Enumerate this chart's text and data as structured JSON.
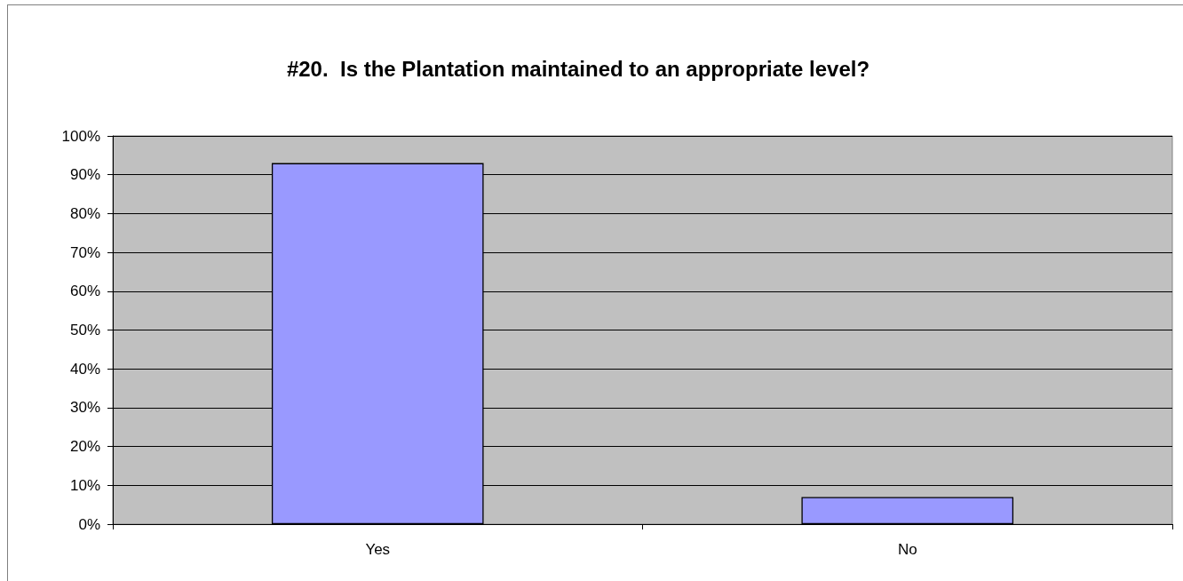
{
  "chart_data": {
    "type": "bar",
    "title": "#20.  Is the Plantation maintained to an appropriate level?",
    "categories": [
      "Yes",
      "No"
    ],
    "values": [
      93,
      7
    ],
    "color": "#9999ff",
    "ylim": [
      0,
      100
    ],
    "yticks": [
      {
        "value": 0,
        "label": "0%"
      },
      {
        "value": 10,
        "label": "10%"
      },
      {
        "value": 20,
        "label": "20%"
      },
      {
        "value": 30,
        "label": "30%"
      },
      {
        "value": 40,
        "label": "40%"
      },
      {
        "value": 50,
        "label": "50%"
      },
      {
        "value": 60,
        "label": "60%"
      },
      {
        "value": 70,
        "label": "70%"
      },
      {
        "value": 80,
        "label": "80%"
      },
      {
        "value": 90,
        "label": "90%"
      },
      {
        "value": 100,
        "label": "100%"
      }
    ],
    "grid": "y"
  }
}
